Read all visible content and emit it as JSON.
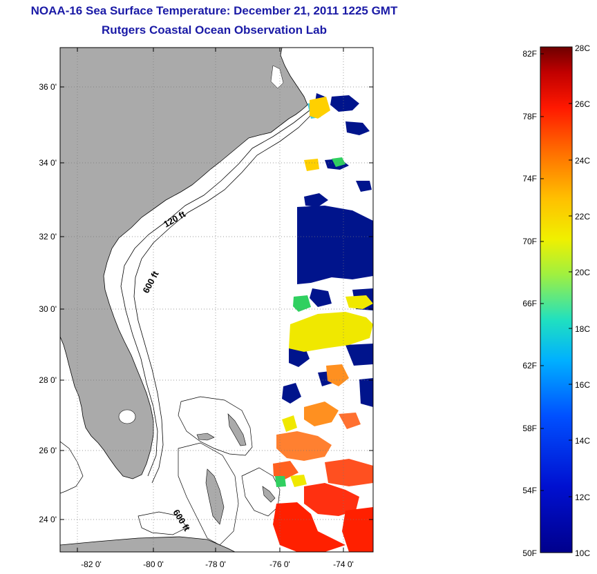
{
  "title": "NOAA-16 Sea Surface Temperature:  December 21, 2011 1225 GMT",
  "subtitle": "Rutgers Coastal Ocean Observation Lab",
  "map": {
    "lon_ticks": [
      "-82 0'",
      "-80 0'",
      "-78 0'",
      "-76 0'",
      "-74 0'"
    ],
    "lat_ticks": [
      "36 0'",
      "34 0'",
      "32 0'",
      "30 0'",
      "28 0'",
      "26 0'",
      "24 0'"
    ],
    "contour_labels": [
      "120 ft",
      "600 ft",
      "600 ft"
    ],
    "colors": {
      "land": "#aaaaaa",
      "ocean_no_data": "#ffffff",
      "cold": "#00148c",
      "mid": "#ffe000",
      "warm": "#ff2000"
    }
  },
  "colorbar": {
    "fahrenheit_labels": [
      "82F",
      "78F",
      "74F",
      "70F",
      "66F",
      "62F",
      "58F",
      "54F",
      "50F"
    ],
    "celsius_labels": [
      "28C",
      "26C",
      "24C",
      "22C",
      "20C",
      "18C",
      "16C",
      "14C",
      "12C",
      "10C"
    ],
    "range_c": [
      10,
      28
    ]
  }
}
